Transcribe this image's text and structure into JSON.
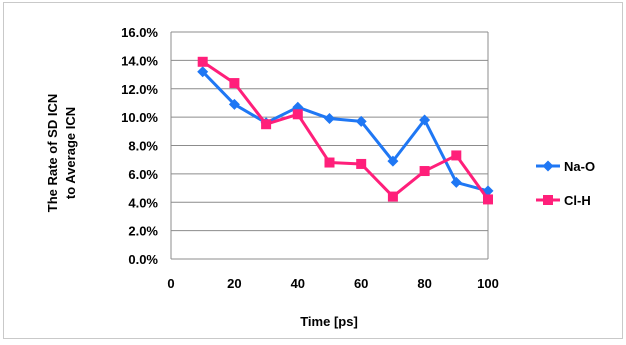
{
  "chart_data": {
    "type": "line",
    "title": "",
    "xlabel": "Time [ps]",
    "ylabel": "The Rate of SD ICN to Average ICN",
    "xlim": [
      0,
      100
    ],
    "ylim": [
      0,
      0.16
    ],
    "x_ticks": [
      0,
      20,
      40,
      60,
      80,
      100
    ],
    "x_tick_labels": [
      "0",
      "20",
      "40",
      "60",
      "80",
      "100"
    ],
    "y_ticks": [
      0,
      0.02,
      0.04,
      0.06,
      0.08,
      0.1,
      0.12,
      0.14,
      0.16
    ],
    "y_tick_labels": [
      "0.0%",
      "2.0%",
      "4.0%",
      "6.0%",
      "8.0%",
      "10.0%",
      "12.0%",
      "14.0%",
      "16.0%"
    ],
    "grid": true,
    "legend_position": "right",
    "x": [
      10,
      20,
      30,
      40,
      50,
      60,
      70,
      80,
      90,
      100
    ],
    "series": [
      {
        "name": "Na-O",
        "color": "#1f77f4",
        "marker": "diamond",
        "values": [
          0.132,
          0.109,
          0.096,
          0.107,
          0.099,
          0.097,
          0.069,
          0.098,
          0.054,
          0.048
        ]
      },
      {
        "name": "Cl-H",
        "color": "#ff1f7a",
        "marker": "square",
        "values": [
          0.139,
          0.124,
          0.095,
          0.102,
          0.068,
          0.067,
          0.044,
          0.062,
          0.073,
          0.042
        ]
      }
    ]
  }
}
